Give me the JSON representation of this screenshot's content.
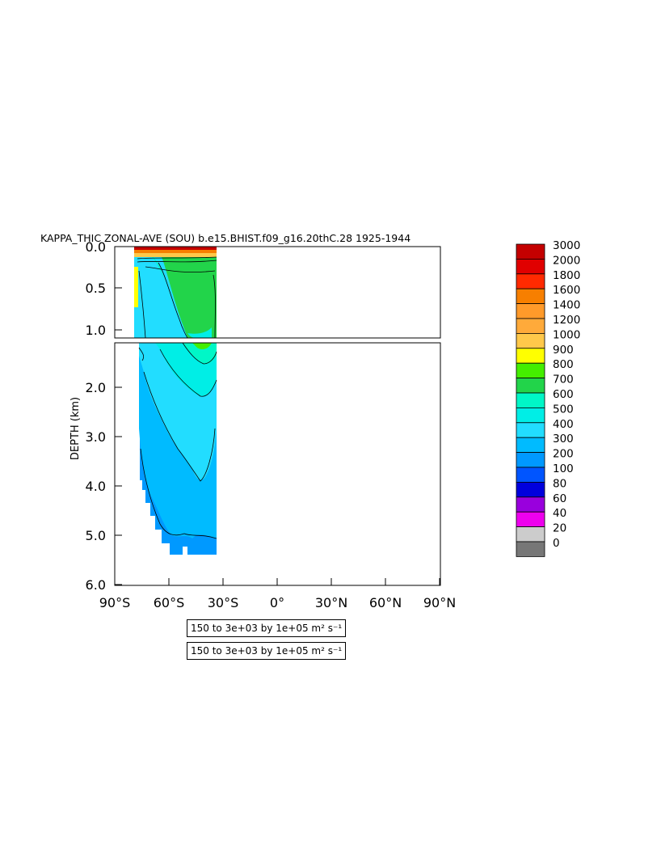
{
  "chart_data": {
    "type": "heatmap",
    "title": "KAPPA_THIC ZONAL-AVE (SOU) b.e15.BHIST.f09_g16.20thC.28 ⁠1925-1944⁠",
    "ylabel": "DEPTH (km)",
    "xlabel": "",
    "xlim": [
      -90,
      90
    ],
    "ylim": [
      6.0,
      0.0
    ],
    "x_ticks": [
      "90°S",
      "60°S",
      "30°S",
      "0°",
      "30°N",
      "60°N",
      "90°N"
    ],
    "y_ticks_upper": [
      "0.0",
      "0.5",
      "1.0"
    ],
    "y_ticks_lower": [
      "2.0",
      "3.0",
      "4.0",
      "5.0",
      "6.0"
    ],
    "panels": [
      {
        "name": "upper",
        "depth_range": [
          0.0,
          1.0
        ]
      },
      {
        "name": "lower",
        "depth_range": [
          1.0,
          6.0
        ]
      }
    ],
    "colorbar": {
      "levels": [
        "3000",
        "2000",
        "1800",
        "1600",
        "1400",
        "1200",
        "1000",
        "900",
        "800",
        "700",
        "600",
        "500",
        "400",
        "300",
        "200",
        "100",
        "80",
        "60",
        "40",
        "20",
        "0"
      ],
      "colors": [
        "#c40000",
        "#e00000",
        "#ff2a00",
        "#f77f00",
        "#ff9a2a",
        "#ffaa3a",
        "#ffc84a",
        "#ffff00",
        "#44ee00",
        "#22d44a",
        "#00f7c7",
        "#00eee6",
        "#22ddff",
        "#00bbff",
        "#0099ff",
        "#0055ff",
        "#0000dd",
        "#9900dd",
        "#ee00ee",
        "#cccccc",
        "#777777"
      ]
    },
    "data_extent_lat": [
      -78,
      -34
    ],
    "annotations": [
      "150 to 3e+03 by 1e+05 m² s⁻¹",
      "150 to 3e+03 by 1e+05 m² s⁻¹"
    ]
  }
}
